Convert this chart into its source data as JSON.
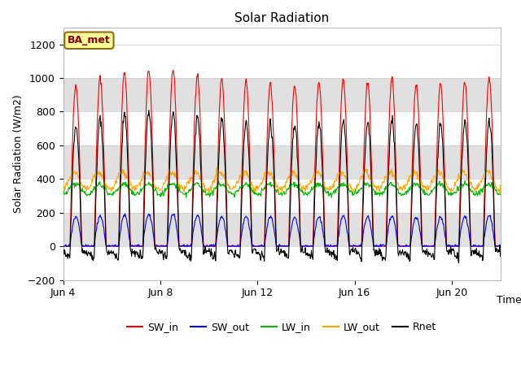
{
  "title": "Solar Radiation",
  "ylabel": "Solar Radiation (W/m2)",
  "xlabel": "Time",
  "ylim": [
    -200,
    1300
  ],
  "yticks": [
    -200,
    0,
    200,
    400,
    600,
    800,
    1000,
    1200
  ],
  "n_days": 18,
  "pts_per_day": 48,
  "site_label": "BA_met",
  "colors": {
    "SW_in": "#FF0000",
    "SW_out": "#0000FF",
    "LW_in": "#00BB00",
    "LW_out": "#FFA500",
    "Rnet": "#000000"
  },
  "background_color": "#FFFFFF",
  "grid_band_color": "#E0E0E0",
  "xtick_labels": [
    "Jun 4",
    "Jun 8",
    "Jun 12",
    "Jun 16",
    "Jun 20"
  ],
  "xtick_days": [
    0,
    4,
    8,
    12,
    16
  ]
}
